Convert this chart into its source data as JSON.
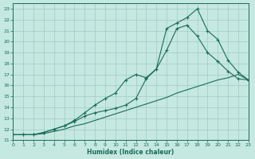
{
  "bg_color": "#c5e8e0",
  "grid_color": "#a0ccc5",
  "line_color": "#1a6b5a",
  "xlim": [
    0,
    23
  ],
  "ylim": [
    11,
    23.5
  ],
  "xticks": [
    0,
    1,
    2,
    3,
    4,
    5,
    6,
    7,
    8,
    9,
    10,
    11,
    12,
    13,
    14,
    15,
    16,
    17,
    18,
    19,
    20,
    21,
    22,
    23
  ],
  "yticks": [
    11,
    12,
    13,
    14,
    15,
    16,
    17,
    18,
    19,
    20,
    21,
    22,
    23
  ],
  "xlabel": "Humidex (Indice chaleur)",
  "line1_x": [
    0,
    1,
    2,
    3,
    4,
    5,
    6,
    7,
    8,
    9,
    10,
    11,
    12,
    13,
    14,
    15,
    16,
    17,
    18,
    19,
    20,
    21,
    22,
    23
  ],
  "line1_y": [
    11.5,
    11.5,
    11.5,
    11.6,
    11.8,
    12.0,
    12.3,
    12.5,
    12.8,
    13.1,
    13.4,
    13.7,
    14.0,
    14.3,
    14.6,
    14.9,
    15.3,
    15.6,
    15.9,
    16.2,
    16.5,
    16.7,
    17.0,
    16.5
  ],
  "line2_x": [
    0,
    1,
    2,
    3,
    4,
    5,
    6,
    7,
    8,
    9,
    10,
    11,
    12,
    13,
    14,
    15,
    16,
    17,
    18,
    19,
    20,
    21,
    22,
    23
  ],
  "line2_y": [
    11.5,
    11.5,
    11.5,
    11.7,
    12.0,
    12.3,
    12.7,
    13.2,
    13.5,
    13.7,
    13.9,
    14.2,
    14.8,
    16.6,
    17.5,
    19.2,
    21.2,
    21.5,
    20.5,
    19.0,
    18.2,
    17.3,
    16.6,
    16.5
  ],
  "line3_x": [
    0,
    1,
    2,
    3,
    4,
    5,
    6,
    7,
    8,
    9,
    10,
    11,
    12,
    13,
    14,
    15,
    16,
    17,
    18,
    19,
    20,
    21,
    22,
    23
  ],
  "line3_y": [
    11.5,
    11.5,
    11.5,
    11.7,
    12.0,
    12.3,
    12.8,
    13.5,
    14.2,
    14.8,
    15.3,
    16.5,
    17.0,
    16.7,
    17.5,
    21.2,
    21.7,
    22.2,
    23.0,
    21.0,
    20.2,
    18.3,
    17.2,
    16.5
  ]
}
